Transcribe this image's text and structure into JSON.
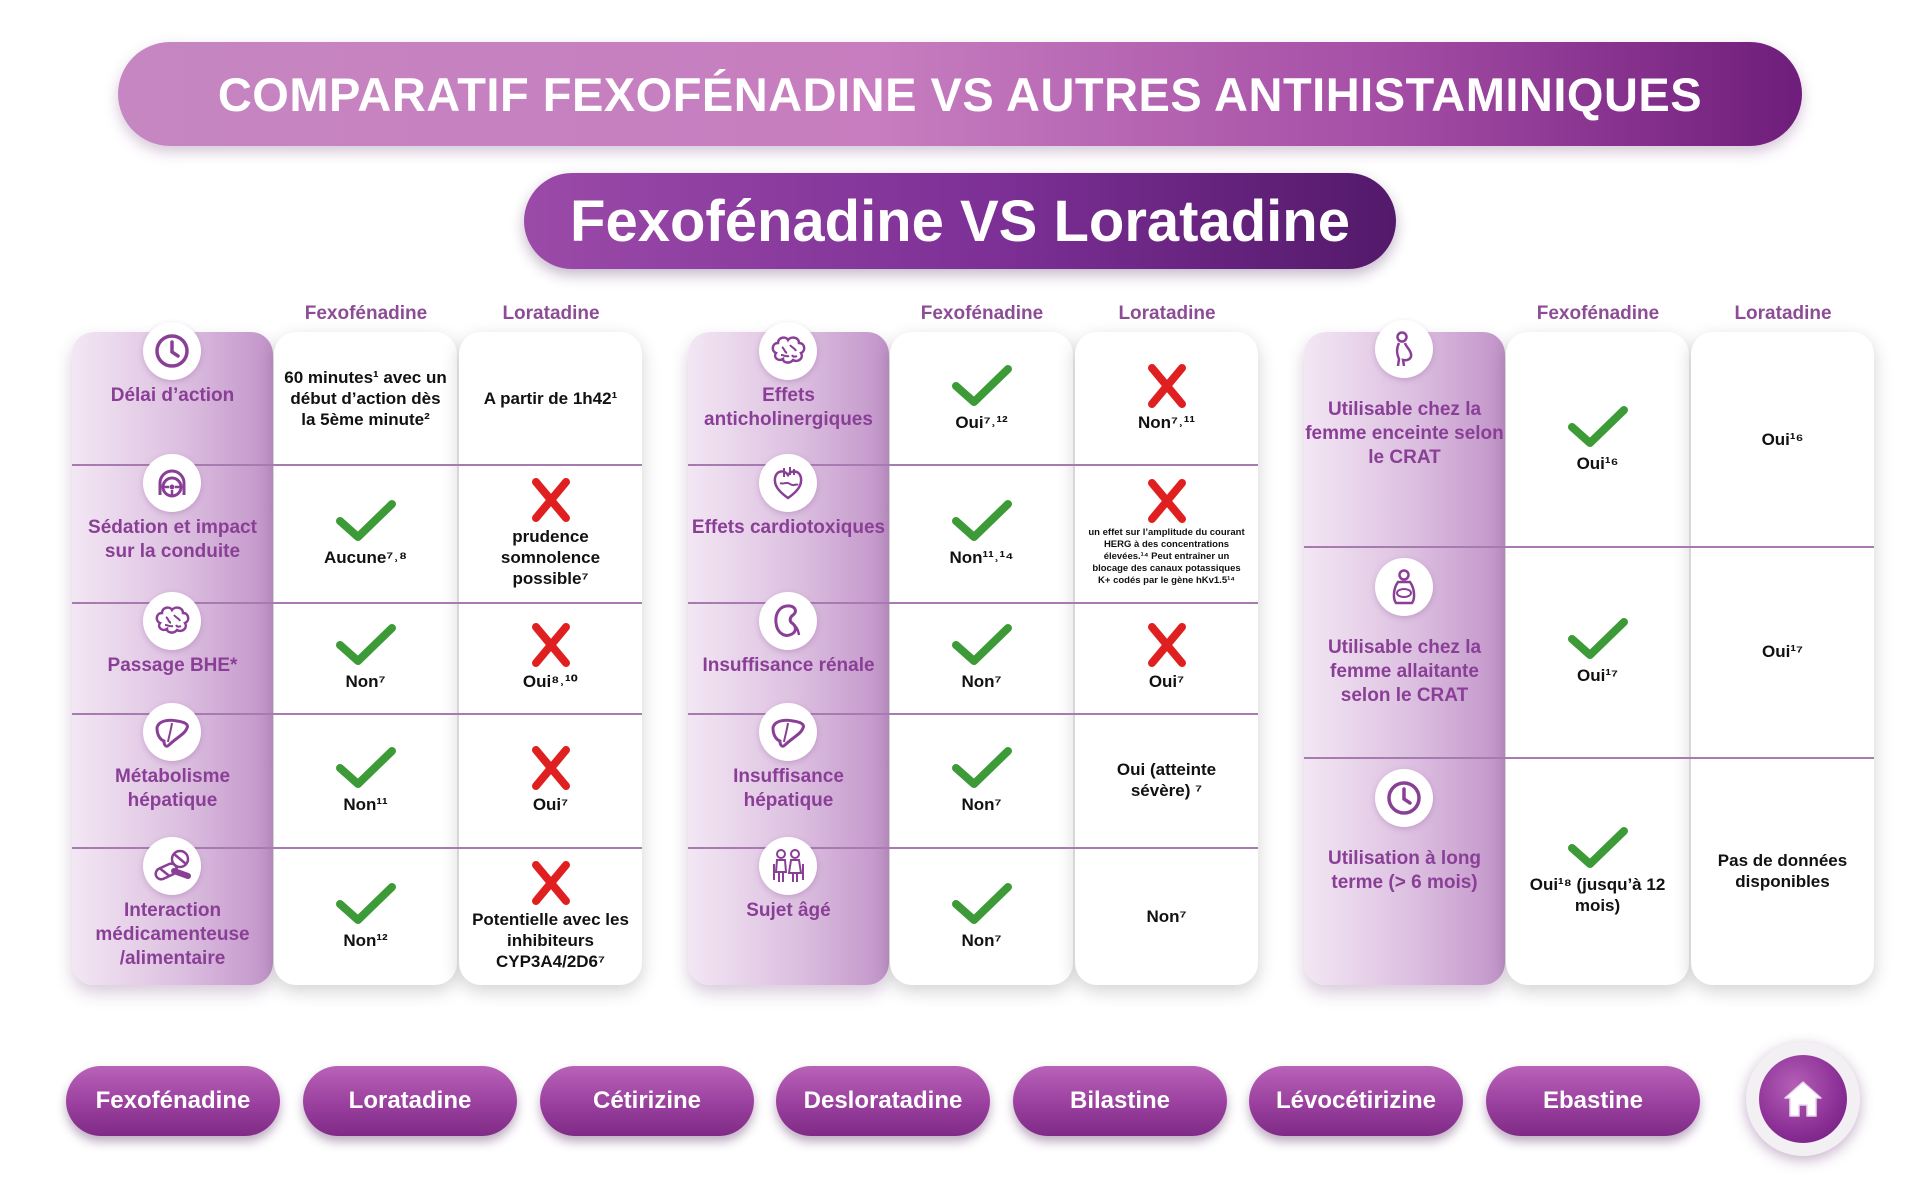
{
  "header": {
    "title": "COMPARATIF FEXOFÉNADINE VS AUTRES ANTIHISTAMINIQUES",
    "subtitle": "Fexofénadine VS Loratadine"
  },
  "colors": {
    "purple": "#8a3f96",
    "check_green": "#3c9a37",
    "cross_red": "#e02020"
  },
  "panels": [
    {
      "col1": "Fexofénadine",
      "col2": "Loratadine",
      "rows": [
        {
          "icon": "clock-icon",
          "label": "Délai d’action",
          "fexo": {
            "mark": "none",
            "text": "60 minutes¹ avec un début d’action dès la 5ème minute²"
          },
          "lora": {
            "mark": "none",
            "text": "A partir de 1h42¹"
          }
        },
        {
          "icon": "steering-wheel-icon",
          "label": "Sédation et impact sur la conduite",
          "fexo": {
            "mark": "check",
            "text": "Aucune⁷˒⁸"
          },
          "lora": {
            "mark": "cross",
            "text": "prudence somnolence possible⁷"
          }
        },
        {
          "icon": "brain-icon",
          "label": "Passage BHE*",
          "fexo": {
            "mark": "check",
            "text": "Non⁷"
          },
          "lora": {
            "mark": "cross",
            "text": "Oui⁸˒¹⁰"
          }
        },
        {
          "icon": "liver-icon",
          "label": "Métabolisme hépatique",
          "fexo": {
            "mark": "check",
            "text": "Non¹¹"
          },
          "lora": {
            "mark": "cross",
            "text": "Oui⁷"
          }
        },
        {
          "icon": "pills-icon",
          "label": "Interaction médicamenteuse /alimentaire",
          "fexo": {
            "mark": "check",
            "text": "Non¹²"
          },
          "lora": {
            "mark": "cross",
            "text": "Potentielle avec les inhibiteurs CYP3A4/2D6⁷"
          }
        }
      ]
    },
    {
      "col1": "Fexofénadine",
      "col2": "Loratadine",
      "rows": [
        {
          "icon": "brain-icon",
          "label": "Effets anticholinergiques",
          "fexo": {
            "mark": "check",
            "text": "Oui⁷˒¹²"
          },
          "lora": {
            "mark": "cross",
            "text": "Non⁷˒¹¹"
          }
        },
        {
          "icon": "heart-icon",
          "label": "Effets cardiotoxiques",
          "fexo": {
            "mark": "check",
            "text": "Non¹¹˒¹⁴"
          },
          "lora": {
            "mark": "cross",
            "text": "un effet sur l’amplitude du courant HERG à des concentrations élevées.¹⁴ Peut entraîner un blocage des canaux potassiques K+ codés par le gène hKv1.5¹⁴",
            "small": true
          }
        },
        {
          "icon": "kidney-icon",
          "label": "Insuffisance rénale",
          "fexo": {
            "mark": "check",
            "text": "Non⁷"
          },
          "lora": {
            "mark": "cross",
            "text": "Oui⁷"
          }
        },
        {
          "icon": "liver-icon",
          "label": "Insuffisance hépatique",
          "fexo": {
            "mark": "check",
            "text": "Non⁷"
          },
          "lora": {
            "mark": "none",
            "text": "Oui (atteinte sévère) ⁷"
          }
        },
        {
          "icon": "elderly-icon",
          "label": "Sujet âgé",
          "fexo": {
            "mark": "check",
            "text": "Non⁷"
          },
          "lora": {
            "mark": "none",
            "text": "Non⁷"
          }
        }
      ]
    },
    {
      "col1": "Fexofénadine",
      "col2": "Loratadine",
      "rows": [
        {
          "icon": "pregnant-woman-icon",
          "label": "Utilisable chez la femme enceinte selon le CRAT",
          "fexo": {
            "mark": "check",
            "text": "Oui¹⁶"
          },
          "lora": {
            "mark": "none",
            "text": "Oui¹⁶"
          }
        },
        {
          "icon": "breastfeeding-icon",
          "label": "Utilisable chez la femme allaitante selon le CRAT",
          "fexo": {
            "mark": "check",
            "text": "Oui¹⁷"
          },
          "lora": {
            "mark": "none",
            "text": "Oui¹⁷"
          }
        },
        {
          "icon": "clock-icon",
          "label": "Utilisation à long terme (> 6 mois)",
          "fexo": {
            "mark": "check",
            "text": "Oui¹⁸ (jusqu’à 12 mois)"
          },
          "lora": {
            "mark": "none",
            "text": "Pas de données disponibles"
          }
        }
      ]
    }
  ],
  "nav": {
    "buttons": [
      "Fexofénadine",
      "Loratadine",
      "Cétirizine",
      "Desloratadine",
      "Bilastine",
      "Lévocétirizine",
      "Ebastine"
    ],
    "home_icon": "home-icon"
  }
}
